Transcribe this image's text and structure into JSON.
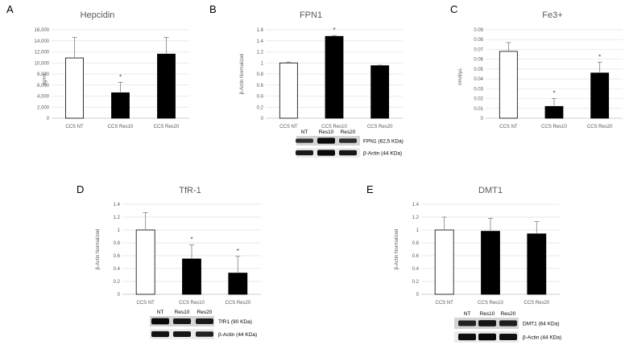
{
  "chart_data": [
    {
      "panel": "A",
      "type": "bar",
      "title": "Hepcidin",
      "xlabel": "",
      "ylabel": "pg/mL",
      "categories": [
        "CCS NT",
        "CCS Res10",
        "CCS Res20"
      ],
      "values": [
        10900,
        4600,
        11600
      ],
      "errors": [
        3700,
        1900,
        3000
      ],
      "significance": [
        "",
        "*",
        ""
      ],
      "fills": [
        "#ffffff",
        "#000000",
        "#000000"
      ],
      "yticks": [
        "0",
        "2,000",
        "4,000",
        "6,000",
        "8,000",
        "10,000",
        "12,000",
        "14,000",
        "16,000"
      ],
      "ylim": [
        0,
        16000
      ],
      "grid": true
    },
    {
      "panel": "B",
      "type": "bar",
      "title": "FPN1",
      "xlabel": "",
      "ylabel": "β-Actin Normalized",
      "categories": [
        "CCS NT",
        "CCS Res10",
        "CCS Res20"
      ],
      "values": [
        1.0,
        1.48,
        0.95
      ],
      "errors": [
        0.015,
        0.015,
        0.01
      ],
      "significance": [
        "",
        "*",
        ""
      ],
      "fills": [
        "#ffffff",
        "#000000",
        "#000000"
      ],
      "yticks": [
        "0",
        "0.2",
        "0.4",
        "0.6",
        "0.8",
        "1",
        "1.2",
        "1.4",
        "1.6"
      ],
      "ylim": [
        0,
        1.6
      ],
      "grid": true,
      "blot": {
        "lanes": [
          "NT",
          "Res10",
          "Res20"
        ],
        "rows": [
          {
            "label": "FPN1 (62,5 KDa)",
            "intensity": [
              0.55,
              1.0,
              0.6
            ]
          },
          {
            "label": "β-Actin (44 KDa)",
            "intensity": [
              0.8,
              1.0,
              0.85
            ]
          }
        ]
      }
    },
    {
      "panel": "C",
      "type": "bar",
      "title": "Fe3+",
      "xlabel": "",
      "ylabel": "nmol/μL",
      "categories": [
        "CCS NT",
        "CCS Res10",
        "CCS Res20"
      ],
      "values": [
        0.068,
        0.012,
        0.046
      ],
      "errors": [
        0.009,
        0.008,
        0.011
      ],
      "significance": [
        "",
        "*",
        "*"
      ],
      "fills": [
        "#ffffff",
        "#000000",
        "#000000"
      ],
      "yticks": [
        "0",
        "0.01",
        "0.02",
        "0.03",
        "0.04",
        "0.05",
        "0.06",
        "0.07",
        "0.08",
        "0.09"
      ],
      "ylim": [
        0,
        0.09
      ],
      "grid": true
    },
    {
      "panel": "D",
      "type": "bar",
      "title": "TfR-1",
      "xlabel": "",
      "ylabel": "β-Actin Normalized",
      "categories": [
        "CCS NT",
        "CCS Res10",
        "CCS Res20"
      ],
      "values": [
        1.0,
        0.55,
        0.33
      ],
      "errors": [
        0.27,
        0.22,
        0.26
      ],
      "significance": [
        "",
        "*",
        "*"
      ],
      "fills": [
        "#ffffff",
        "#000000",
        "#000000"
      ],
      "yticks": [
        "0",
        "0.2",
        "0.4",
        "0.6",
        "0.8",
        "1",
        "1.2",
        "1.4"
      ],
      "ylim": [
        0,
        1.4
      ],
      "grid": true,
      "blot": {
        "lanes": [
          "NT",
          "Res10",
          "Res20"
        ],
        "rows": [
          {
            "label": "TfR1 (90 KDa)",
            "intensity": [
              1.0,
              0.85,
              0.8
            ]
          },
          {
            "label": "β-Actin (44 KDa)",
            "intensity": [
              0.9,
              0.85,
              0.7
            ]
          }
        ]
      }
    },
    {
      "panel": "E",
      "type": "bar",
      "title": "DMT1",
      "xlabel": "",
      "ylabel": "β-Actin Normalized",
      "categories": [
        "CCS NT",
        "CCS Res10",
        "CCS Res20"
      ],
      "values": [
        1.0,
        0.98,
        0.94
      ],
      "errors": [
        0.2,
        0.2,
        0.19
      ],
      "significance": [
        "",
        "",
        ""
      ],
      "fills": [
        "#ffffff",
        "#000000",
        "#000000"
      ],
      "yticks": [
        "0",
        "0.2",
        "0.4",
        "0.6",
        "0.8",
        "1",
        "1.2",
        "1.4"
      ],
      "ylim": [
        0,
        1.4
      ],
      "grid": true,
      "blot": {
        "lanes": [
          "NT",
          "Res10",
          "Res20"
        ],
        "rows": [
          {
            "label": "DMT1 (64 KDa)",
            "intensity": [
              0.7,
              0.85,
              0.75
            ]
          },
          {
            "label": "β-Actin (44 KDa)",
            "intensity": [
              0.95,
              1.0,
              0.9
            ]
          }
        ]
      }
    }
  ]
}
